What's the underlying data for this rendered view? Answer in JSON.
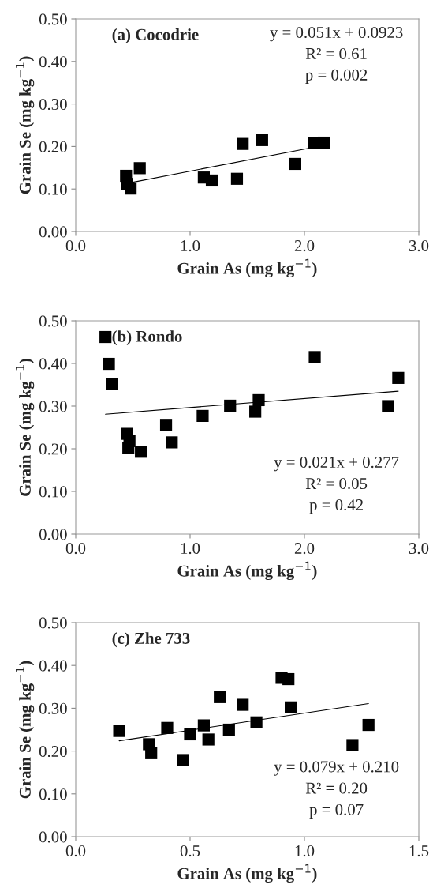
{
  "chart_data": [
    {
      "type": "scatter",
      "title": "(a) Cocodrie",
      "xlabel": "Grain As (mg kg$^{−1}$)",
      "ylabel": "Grain Se (mg kg$^{−1}$)",
      "xlim": [
        0,
        3
      ],
      "xticks": [
        {
          "value": 0,
          "label": "0.0"
        },
        {
          "value": 1,
          "label": "1.0"
        },
        {
          "value": 2,
          "label": "2.0"
        },
        {
          "value": 3,
          "label": "3.0"
        }
      ],
      "ylim": [
        0,
        0.5
      ],
      "yticks": [
        {
          "value": 0,
          "label": "0.00"
        },
        {
          "value": 0.1,
          "label": "0.10"
        },
        {
          "value": 0.2,
          "label": "0.20"
        },
        {
          "value": 0.3,
          "label": "0.30"
        },
        {
          "value": 0.4,
          "label": "0.40"
        },
        {
          "value": 0.5,
          "label": "0.50"
        }
      ],
      "grid": false,
      "legend": false,
      "series": [
        {
          "type": "scatter",
          "marker": "square",
          "color": "#000000",
          "x": [
            0.44,
            0.45,
            0.48,
            0.56,
            1.12,
            1.19,
            1.41,
            1.46,
            1.63,
            1.92,
            2.08,
            2.17
          ],
          "values": [
            0.131,
            0.112,
            0.101,
            0.149,
            0.127,
            0.12,
            0.124,
            0.206,
            0.215,
            0.159,
            0.208,
            0.209
          ]
        },
        {
          "type": "line",
          "marker": "none",
          "line_style": "solid",
          "color": "#000000",
          "x": [
            0.5,
            2.08
          ],
          "values": [
            0.116,
            0.198
          ]
        }
      ],
      "annotations": [
        "y = 0.051x + 0.0923",
        "R² = 0.61",
        "p = 0.002"
      ]
    },
    {
      "type": "scatter",
      "title": "(b) Rondo",
      "xlabel": "Grain As (mg kg$^{−1}$)",
      "ylabel": "Grain Se (mg kg$^{−1}$)",
      "xlim": [
        0,
        3
      ],
      "xticks": [
        {
          "value": 0,
          "label": "0.0"
        },
        {
          "value": 1,
          "label": "1.0"
        },
        {
          "value": 2,
          "label": "2.0"
        },
        {
          "value": 3,
          "label": "3.0"
        }
      ],
      "ylim": [
        0,
        0.5
      ],
      "yticks": [
        {
          "value": 0,
          "label": "0.00"
        },
        {
          "value": 0.1,
          "label": "0.10"
        },
        {
          "value": 0.2,
          "label": "0.20"
        },
        {
          "value": 0.3,
          "label": "0.30"
        },
        {
          "value": 0.4,
          "label": "0.40"
        },
        {
          "value": 0.5,
          "label": "0.50"
        }
      ],
      "grid": false,
      "legend": false,
      "series": [
        {
          "type": "scatter",
          "marker": "square",
          "color": "#000000",
          "x": [
            0.26,
            0.29,
            0.32,
            0.45,
            0.47,
            0.46,
            0.57,
            0.79,
            0.84,
            1.11,
            1.35,
            1.57,
            1.6,
            2.09,
            2.73,
            2.82
          ],
          "values": [
            0.462,
            0.399,
            0.352,
            0.235,
            0.218,
            0.202,
            0.193,
            0.256,
            0.215,
            0.277,
            0.301,
            0.287,
            0.314,
            0.415,
            0.3,
            0.366
          ]
        },
        {
          "type": "line",
          "marker": "none",
          "line_style": "solid",
          "color": "#000000",
          "x": [
            0.26,
            2.82
          ],
          "values": [
            0.281,
            0.335
          ]
        }
      ],
      "annotations": [
        "y = 0.021x + 0.277",
        "R² = 0.05",
        "p = 0.42"
      ]
    },
    {
      "type": "scatter",
      "title": "(c) Zhe 733",
      "xlabel": "Grain As (mg kg$^{−1}$)",
      "ylabel": "Grain Se (mg kg$^{−1}$)",
      "xlim": [
        0,
        1.5
      ],
      "xticks": [
        {
          "value": 0,
          "label": "0.0"
        },
        {
          "value": 0.5,
          "label": "0.5"
        },
        {
          "value": 1,
          "label": "1.0"
        },
        {
          "value": 1.5,
          "label": "1.5"
        }
      ],
      "ylim": [
        0,
        0.5
      ],
      "yticks": [
        {
          "value": 0,
          "label": "0.00"
        },
        {
          "value": 0.1,
          "label": "0.10"
        },
        {
          "value": 0.2,
          "label": "0.20"
        },
        {
          "value": 0.3,
          "label": "0.30"
        },
        {
          "value": 0.4,
          "label": "0.40"
        },
        {
          "value": 0.5,
          "label": "0.50"
        }
      ],
      "grid": false,
      "legend": false,
      "series": [
        {
          "type": "scatter",
          "marker": "square",
          "color": "#000000",
          "x": [
            0.19,
            0.32,
            0.33,
            0.4,
            0.47,
            0.5,
            0.56,
            0.58,
            0.63,
            0.67,
            0.73,
            0.79,
            0.9,
            0.93,
            0.94,
            1.21,
            1.28
          ],
          "values": [
            0.247,
            0.216,
            0.195,
            0.254,
            0.179,
            0.239,
            0.26,
            0.227,
            0.326,
            0.25,
            0.308,
            0.267,
            0.371,
            0.368,
            0.302,
            0.214,
            0.261
          ]
        },
        {
          "type": "line",
          "marker": "none",
          "line_style": "solid",
          "color": "#000000",
          "x": [
            0.19,
            1.28
          ],
          "values": [
            0.224,
            0.311
          ]
        }
      ],
      "annotations": [
        "y = 0.079x + 0.210",
        "R² = 0.20",
        "p = 0.07"
      ]
    }
  ]
}
